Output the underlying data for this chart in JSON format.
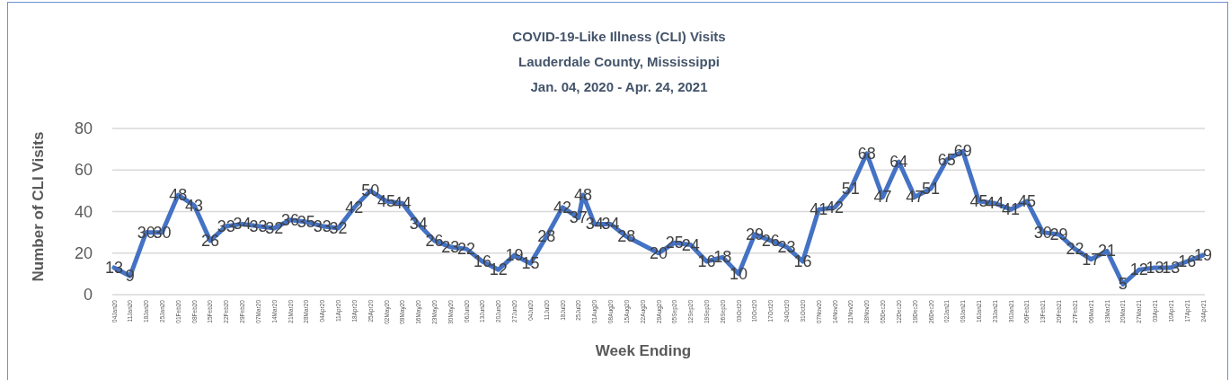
{
  "chart_data": {
    "type": "line",
    "title": "COVID-19-Like Illness (CLI) Visits",
    "subtitle": "Lauderdale County, Mississippi\nJan. 04, 2020 - Apr. 24, 2021",
    "xlabel": "Week Ending",
    "ylabel": "Number of CLI Visits",
    "x": [
      "2020-01-04",
      "2020-01-11",
      "2020-01-18",
      "2020-01-25",
      "2020-02-01",
      "2020-02-08",
      "2020-02-15",
      "2020-02-22",
      "2020-02-29",
      "2020-03-07",
      "2020-03-14",
      "2020-03-21",
      "2020-03-28",
      "2020-04-04",
      "2020-04-11",
      "2020-04-18",
      "2020-04-25",
      "2020-05-02",
      "2020-05-09",
      "2020-05-16",
      "2020-05-23",
      "2020-05-30",
      "2020-06-06",
      "2020-06-13",
      "2020-06-20",
      "2020-06-27",
      "2020-07-04",
      "2020-07-11",
      "2020-07-18",
      "2020-07-25",
      "2020-07-27",
      "2020-08-01",
      "2020-08-08",
      "2020-08-15",
      "2020-08-29",
      "2020-09-05",
      "2020-09-12",
      "2020-09-19",
      "2020-09-26",
      "2020-10-03",
      "2020-10-10",
      "2020-10-17",
      "2020-10-24",
      "2020-10-31",
      "2020-11-07",
      "2020-11-14",
      "2020-11-21",
      "2020-11-28",
      "2020-12-05",
      "2020-12-12",
      "2020-12-19",
      "2020-12-26",
      "2021-01-02",
      "2021-01-09",
      "2021-01-16",
      "2021-01-23",
      "2021-01-30",
      "2021-02-06",
      "2021-02-13",
      "2021-02-20",
      "2021-02-27",
      "2021-03-06",
      "2021-03-13",
      "2021-03-20",
      "2021-03-27",
      "2021-04-03",
      "2021-04-10",
      "2021-04-17",
      "2021-04-24"
    ],
    "series": [
      {
        "color": "#4472c4",
        "values": [
          13,
          9,
          30,
          30,
          48,
          43,
          26,
          33,
          34,
          33,
          32,
          36,
          35,
          33,
          32,
          42,
          50,
          45,
          44,
          34,
          26,
          23,
          22,
          16,
          12,
          19,
          15,
          28,
          42,
          37,
          48,
          34,
          34,
          28,
          20,
          25,
          24,
          16,
          18,
          10,
          29,
          26,
          23,
          16,
          41,
          42,
          51,
          68,
          47,
          64,
          47,
          51,
          65,
          69,
          45,
          44,
          41,
          45,
          30,
          29,
          22,
          17,
          21,
          5,
          12,
          13,
          13,
          16,
          19
        ]
      }
    ],
    "xlim": [
      "2020-01-04",
      "2021-04-24"
    ],
    "xticks": [
      {
        "value": "2020-01-04",
        "label": "04Jan20"
      },
      {
        "value": "2020-01-11",
        "label": "11Jan20"
      },
      {
        "value": "2020-01-18",
        "label": "18Jan20"
      },
      {
        "value": "2020-01-25",
        "label": "25Jan20"
      },
      {
        "value": "2020-02-01",
        "label": "01Feb20"
      },
      {
        "value": "2020-02-08",
        "label": "08Feb20"
      },
      {
        "value": "2020-02-15",
        "label": "15Feb20"
      },
      {
        "value": "2020-02-22",
        "label": "22Feb20"
      },
      {
        "value": "2020-02-29",
        "label": "29Feb20"
      },
      {
        "value": "2020-03-07",
        "label": "07Mar20"
      },
      {
        "value": "2020-03-14",
        "label": "14Mar20"
      },
      {
        "value": "2020-03-21",
        "label": "21Mar20"
      },
      {
        "value": "2020-03-28",
        "label": "28Mar20"
      },
      {
        "value": "2020-04-04",
        "label": "04Apr20"
      },
      {
        "value": "2020-04-11",
        "label": "11Apr20"
      },
      {
        "value": "2020-04-18",
        "label": "18Apr20"
      },
      {
        "value": "2020-04-25",
        "label": "25Apr20"
      },
      {
        "value": "2020-05-02",
        "label": "02May20"
      },
      {
        "value": "2020-05-09",
        "label": "09May20"
      },
      {
        "value": "2020-05-16",
        "label": "16May20"
      },
      {
        "value": "2020-05-23",
        "label": "23May20"
      },
      {
        "value": "2020-05-30",
        "label": "30May20"
      },
      {
        "value": "2020-06-06",
        "label": "06Jun20"
      },
      {
        "value": "2020-06-13",
        "label": "13Jun20"
      },
      {
        "value": "2020-06-20",
        "label": "20Jun20"
      },
      {
        "value": "2020-06-27",
        "label": "27Jun20"
      },
      {
        "value": "2020-07-04",
        "label": "04Jul20"
      },
      {
        "value": "2020-07-11",
        "label": "11Jul20"
      },
      {
        "value": "2020-07-18",
        "label": "18Jul20"
      },
      {
        "value": "2020-07-25",
        "label": "25Jul20"
      },
      {
        "value": "2020-08-01",
        "label": "01Aug20"
      },
      {
        "value": "2020-08-08",
        "label": "08Aug20"
      },
      {
        "value": "2020-08-15",
        "label": "15Aug20"
      },
      {
        "value": "2020-08-22",
        "label": "22Aug20"
      },
      {
        "value": "2020-08-29",
        "label": "29Aug20"
      },
      {
        "value": "2020-09-05",
        "label": "05Sep20"
      },
      {
        "value": "2020-09-12",
        "label": "12Sep20"
      },
      {
        "value": "2020-09-19",
        "label": "19Sep20"
      },
      {
        "value": "2020-09-26",
        "label": "26Sep20"
      },
      {
        "value": "2020-10-03",
        "label": "03Oct20"
      },
      {
        "value": "2020-10-10",
        "label": "10Oct20"
      },
      {
        "value": "2020-10-17",
        "label": "17Oct20"
      },
      {
        "value": "2020-10-24",
        "label": "24Oct20"
      },
      {
        "value": "2020-10-31",
        "label": "31Oct20"
      },
      {
        "value": "2020-11-07",
        "label": "07Nov20"
      },
      {
        "value": "2020-11-14",
        "label": "14Nov20"
      },
      {
        "value": "2020-11-21",
        "label": "21Nov20"
      },
      {
        "value": "2020-11-28",
        "label": "28Nov20"
      },
      {
        "value": "2020-12-05",
        "label": "05Dec20"
      },
      {
        "value": "2020-12-12",
        "label": "12Dec20"
      },
      {
        "value": "2020-12-19",
        "label": "19Dec20"
      },
      {
        "value": "2020-12-26",
        "label": "26Dec20"
      },
      {
        "value": "2021-01-02",
        "label": "02Jan21"
      },
      {
        "value": "2021-01-09",
        "label": "09Jan21"
      },
      {
        "value": "2021-01-16",
        "label": "16Jan21"
      },
      {
        "value": "2021-01-23",
        "label": "23Jan21"
      },
      {
        "value": "2021-01-30",
        "label": "30Jan21"
      },
      {
        "value": "2021-02-06",
        "label": "06Feb21"
      },
      {
        "value": "2021-02-13",
        "label": "13Feb21"
      },
      {
        "value": "2021-02-20",
        "label": "20Feb21"
      },
      {
        "value": "2021-02-27",
        "label": "27Feb21"
      },
      {
        "value": "2021-03-06",
        "label": "06Mar21"
      },
      {
        "value": "2021-03-13",
        "label": "13Mar21"
      },
      {
        "value": "2021-03-20",
        "label": "20Mar21"
      },
      {
        "value": "2021-03-27",
        "label": "27Mar21"
      },
      {
        "value": "2021-04-03",
        "label": "03Apr21"
      },
      {
        "value": "2021-04-10",
        "label": "10Apr21"
      },
      {
        "value": "2021-04-17",
        "label": "17Apr21"
      },
      {
        "value": "2021-04-24",
        "label": "24Apr21"
      }
    ],
    "ylim": [
      0,
      80
    ],
    "yticks": [
      0,
      20,
      40,
      60,
      80
    ],
    "grid": "y",
    "data_labels": true
  }
}
